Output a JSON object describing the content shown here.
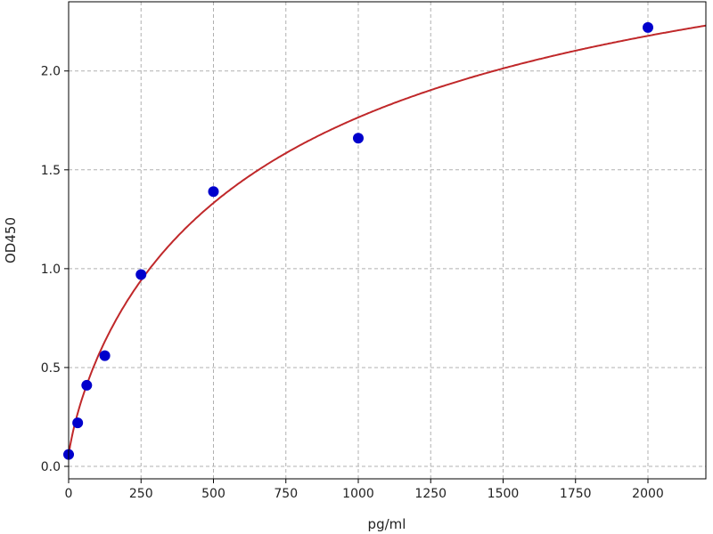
{
  "chart_data": {
    "type": "scatter",
    "title": "",
    "xlabel": "pg/ml",
    "ylabel": "OD450",
    "xlim": [
      0,
      2200
    ],
    "ylim": [
      -0.063,
      2.35
    ],
    "xticks": [
      0,
      250,
      500,
      750,
      1000,
      1250,
      1500,
      1750,
      2000
    ],
    "yticks": [
      0.0,
      0.5,
      1.0,
      1.5,
      2.0
    ],
    "xtick_labels": [
      "0",
      "250",
      "500",
      "750",
      "1000",
      "1250",
      "1500",
      "1750",
      "2000"
    ],
    "ytick_labels": [
      "0.0",
      "0.5",
      "1.0",
      "1.5",
      "2.0"
    ],
    "grid": true,
    "series": [
      {
        "x": [
          0,
          31.25,
          62.5,
          125,
          250,
          500,
          1000,
          2000
        ],
        "y": [
          0.06,
          0.22,
          0.41,
          0.56,
          0.97,
          1.39,
          1.66,
          2.22
        ],
        "marker_color": "#0000cc"
      }
    ],
    "fit_curve_color": "#c0282a"
  }
}
